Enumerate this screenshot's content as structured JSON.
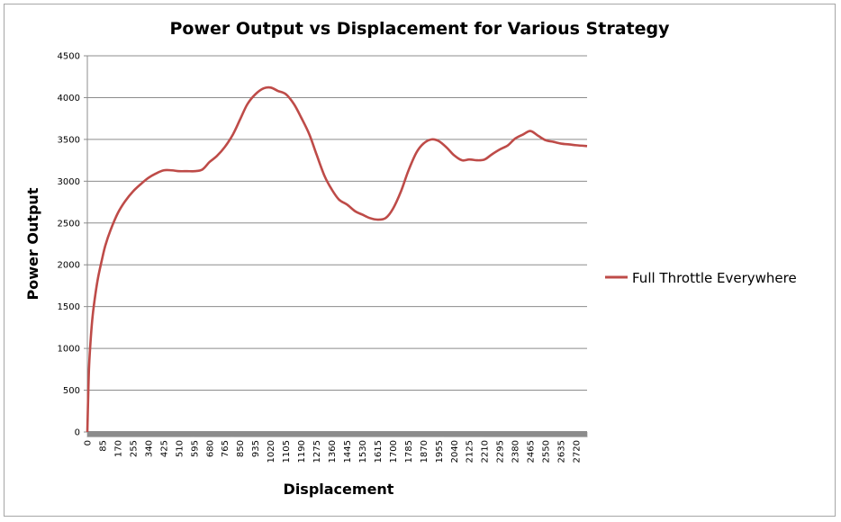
{
  "chart_data": {
    "type": "line",
    "title": "Power Output vs Displacement for Various Strategy",
    "xlabel": "Displacement",
    "ylabel": "Power Output",
    "ylim": [
      0,
      4500
    ],
    "yticks": [
      0,
      500,
      1000,
      1500,
      2000,
      2500,
      3000,
      3500,
      4000,
      4500
    ],
    "xlim": [
      0,
      2780
    ],
    "xticks": [
      0,
      85,
      170,
      255,
      340,
      425,
      510,
      595,
      680,
      765,
      850,
      935,
      1020,
      1105,
      1190,
      1275,
      1360,
      1445,
      1530,
      1615,
      1700,
      1785,
      1870,
      1955,
      2040,
      2125,
      2210,
      2295,
      2380,
      2465,
      2550,
      2635,
      2720
    ],
    "grid": "horizontal",
    "legend_position": "right",
    "series": [
      {
        "name": "Full Throttle Everywhere",
        "color": "#be4b48",
        "x": [
          0,
          5,
          10,
          20,
          30,
          45,
          60,
          80,
          100,
          130,
          170,
          210,
          255,
          300,
          340,
          380,
          425,
          470,
          510,
          555,
          595,
          640,
          680,
          720,
          765,
          810,
          850,
          890,
          935,
          980,
          1020,
          1060,
          1105,
          1150,
          1190,
          1235,
          1275,
          1320,
          1360,
          1400,
          1445,
          1490,
          1530,
          1570,
          1615,
          1660,
          1700,
          1745,
          1785,
          1830,
          1870,
          1915,
          1955,
          2000,
          2040,
          2085,
          2125,
          2170,
          2210,
          2250,
          2295,
          2340,
          2380,
          2425,
          2465,
          2510,
          2550,
          2595,
          2635,
          2680,
          2720,
          2780
        ],
        "y": [
          0,
          450,
          800,
          1150,
          1400,
          1650,
          1850,
          2050,
          2230,
          2420,
          2620,
          2760,
          2880,
          2970,
          3040,
          3090,
          3130,
          3130,
          3120,
          3120,
          3120,
          3140,
          3230,
          3300,
          3410,
          3560,
          3740,
          3920,
          4040,
          4110,
          4120,
          4080,
          4040,
          3920,
          3760,
          3560,
          3320,
          3060,
          2900,
          2780,
          2720,
          2640,
          2600,
          2560,
          2540,
          2560,
          2670,
          2880,
          3120,
          3340,
          3450,
          3500,
          3480,
          3400,
          3310,
          3250,
          3260,
          3250,
          3260,
          3320,
          3380,
          3430,
          3510,
          3560,
          3600,
          3540,
          3490,
          3470,
          3450,
          3440,
          3430,
          3420
        ]
      }
    ]
  }
}
